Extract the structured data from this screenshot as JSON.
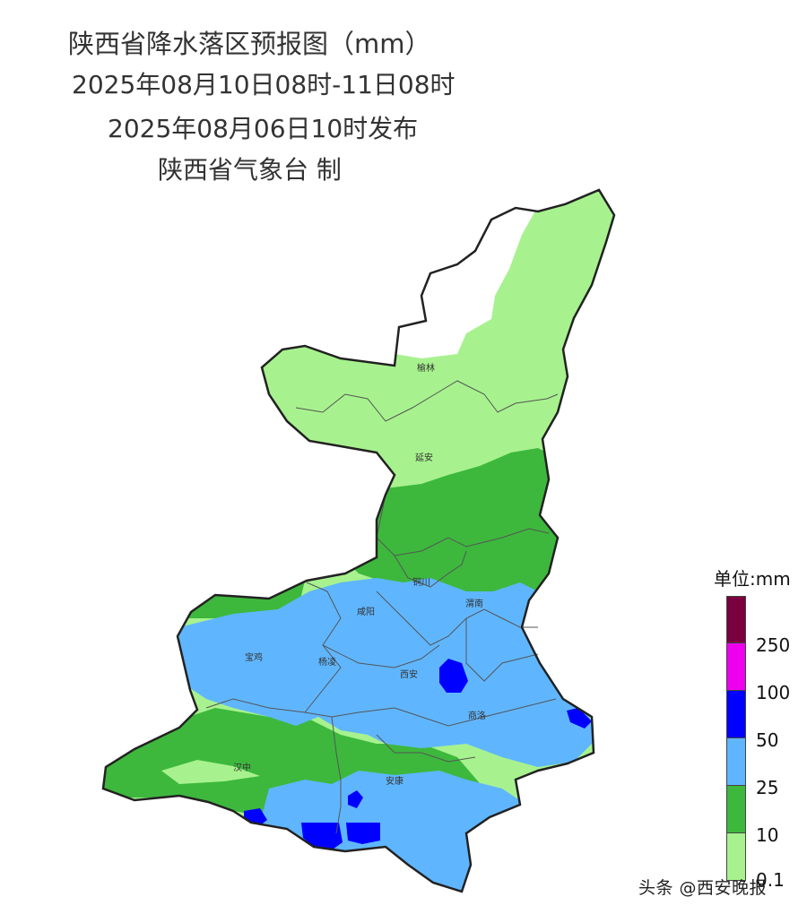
{
  "title": {
    "line1": "陕西省降水落区预报图（mm）",
    "line2": "2025年08月10日08时-11日08时",
    "line3": "2025年08月06日10时发布",
    "line4": "陕西省气象台 制"
  },
  "cities": [
    "榆林",
    "延安",
    "铜川",
    "渭南",
    "咸阳",
    "宝鸡",
    "杨凌",
    "西安",
    "商洛",
    "汉中",
    "安康"
  ],
  "legend": {
    "title": "单位:mm",
    "labels": [
      "250",
      "100",
      "50",
      "25",
      "10",
      "0.1"
    ],
    "colors": [
      "#7a0040",
      "#ee00ee",
      "#0000ff",
      "#5fb6ff",
      "#3db83d",
      "#a7f28e"
    ]
  },
  "watermark": "头条 @西安晚报"
}
